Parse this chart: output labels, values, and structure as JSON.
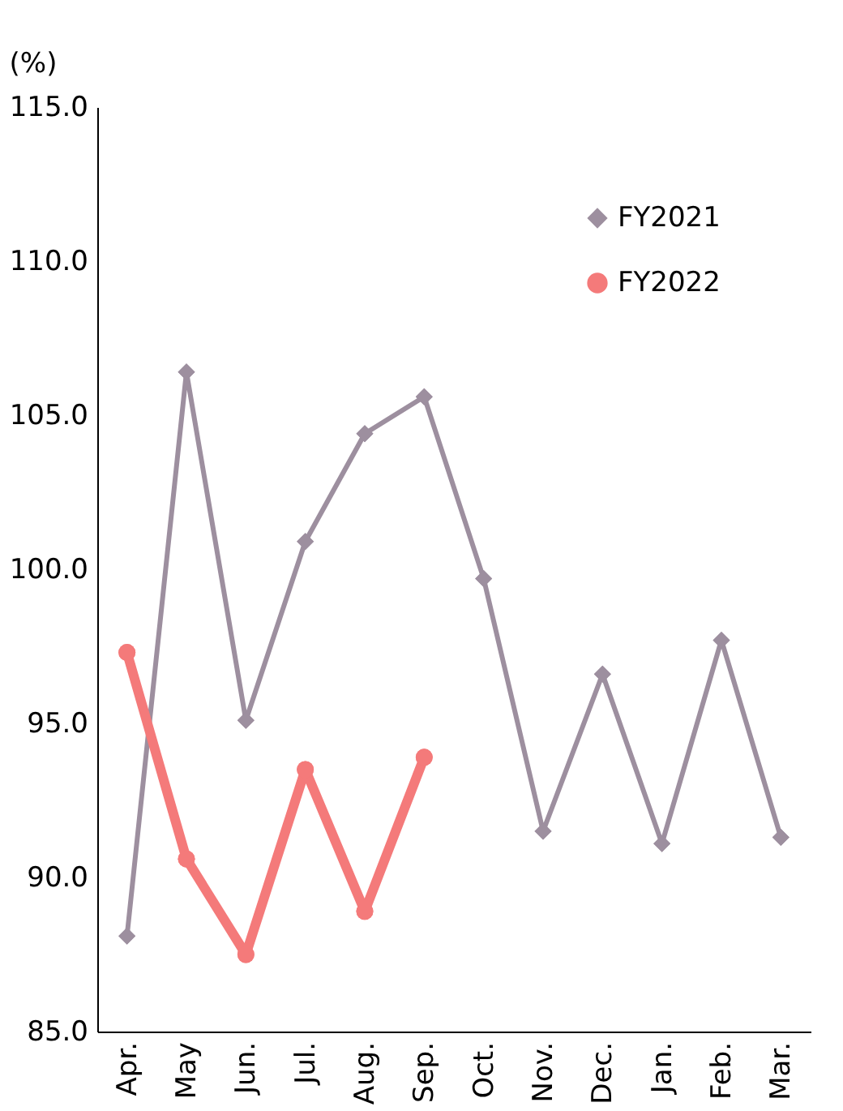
{
  "chart_data": {
    "type": "line",
    "ylabel": "(%)",
    "categories": [
      "Apr.",
      "May",
      "Jun.",
      "Jul.",
      "Aug.",
      "Sep.",
      "Oct.",
      "Nov.",
      "Dec.",
      "Jan.",
      "Feb.",
      "Mar."
    ],
    "series": [
      {
        "name": "FY2021",
        "color": "#9d8f9f",
        "marker": "diamond",
        "values": [
          88.1,
          106.4,
          95.1,
          100.9,
          104.4,
          105.6,
          99.7,
          91.5,
          96.6,
          91.1,
          97.7,
          91.3
        ]
      },
      {
        "name": "FY2022",
        "color": "#f47a7a",
        "marker": "circle",
        "values": [
          97.3,
          90.6,
          87.5,
          93.5,
          88.9,
          93.9,
          null,
          null,
          null,
          null,
          null,
          null
        ]
      }
    ],
    "ylim": [
      85,
      115
    ],
    "yticks": [
      {
        "value": 85,
        "label": "85.0"
      },
      {
        "value": 90,
        "label": "90.0"
      },
      {
        "value": 95,
        "label": "95.0"
      },
      {
        "value": 100,
        "label": "100.0"
      },
      {
        "value": 105,
        "label": "105.0"
      },
      {
        "value": 110,
        "label": "110.0"
      },
      {
        "value": 115,
        "label": "115.0"
      }
    ],
    "grid": false,
    "legend": "top right",
    "line_style": "solid"
  }
}
